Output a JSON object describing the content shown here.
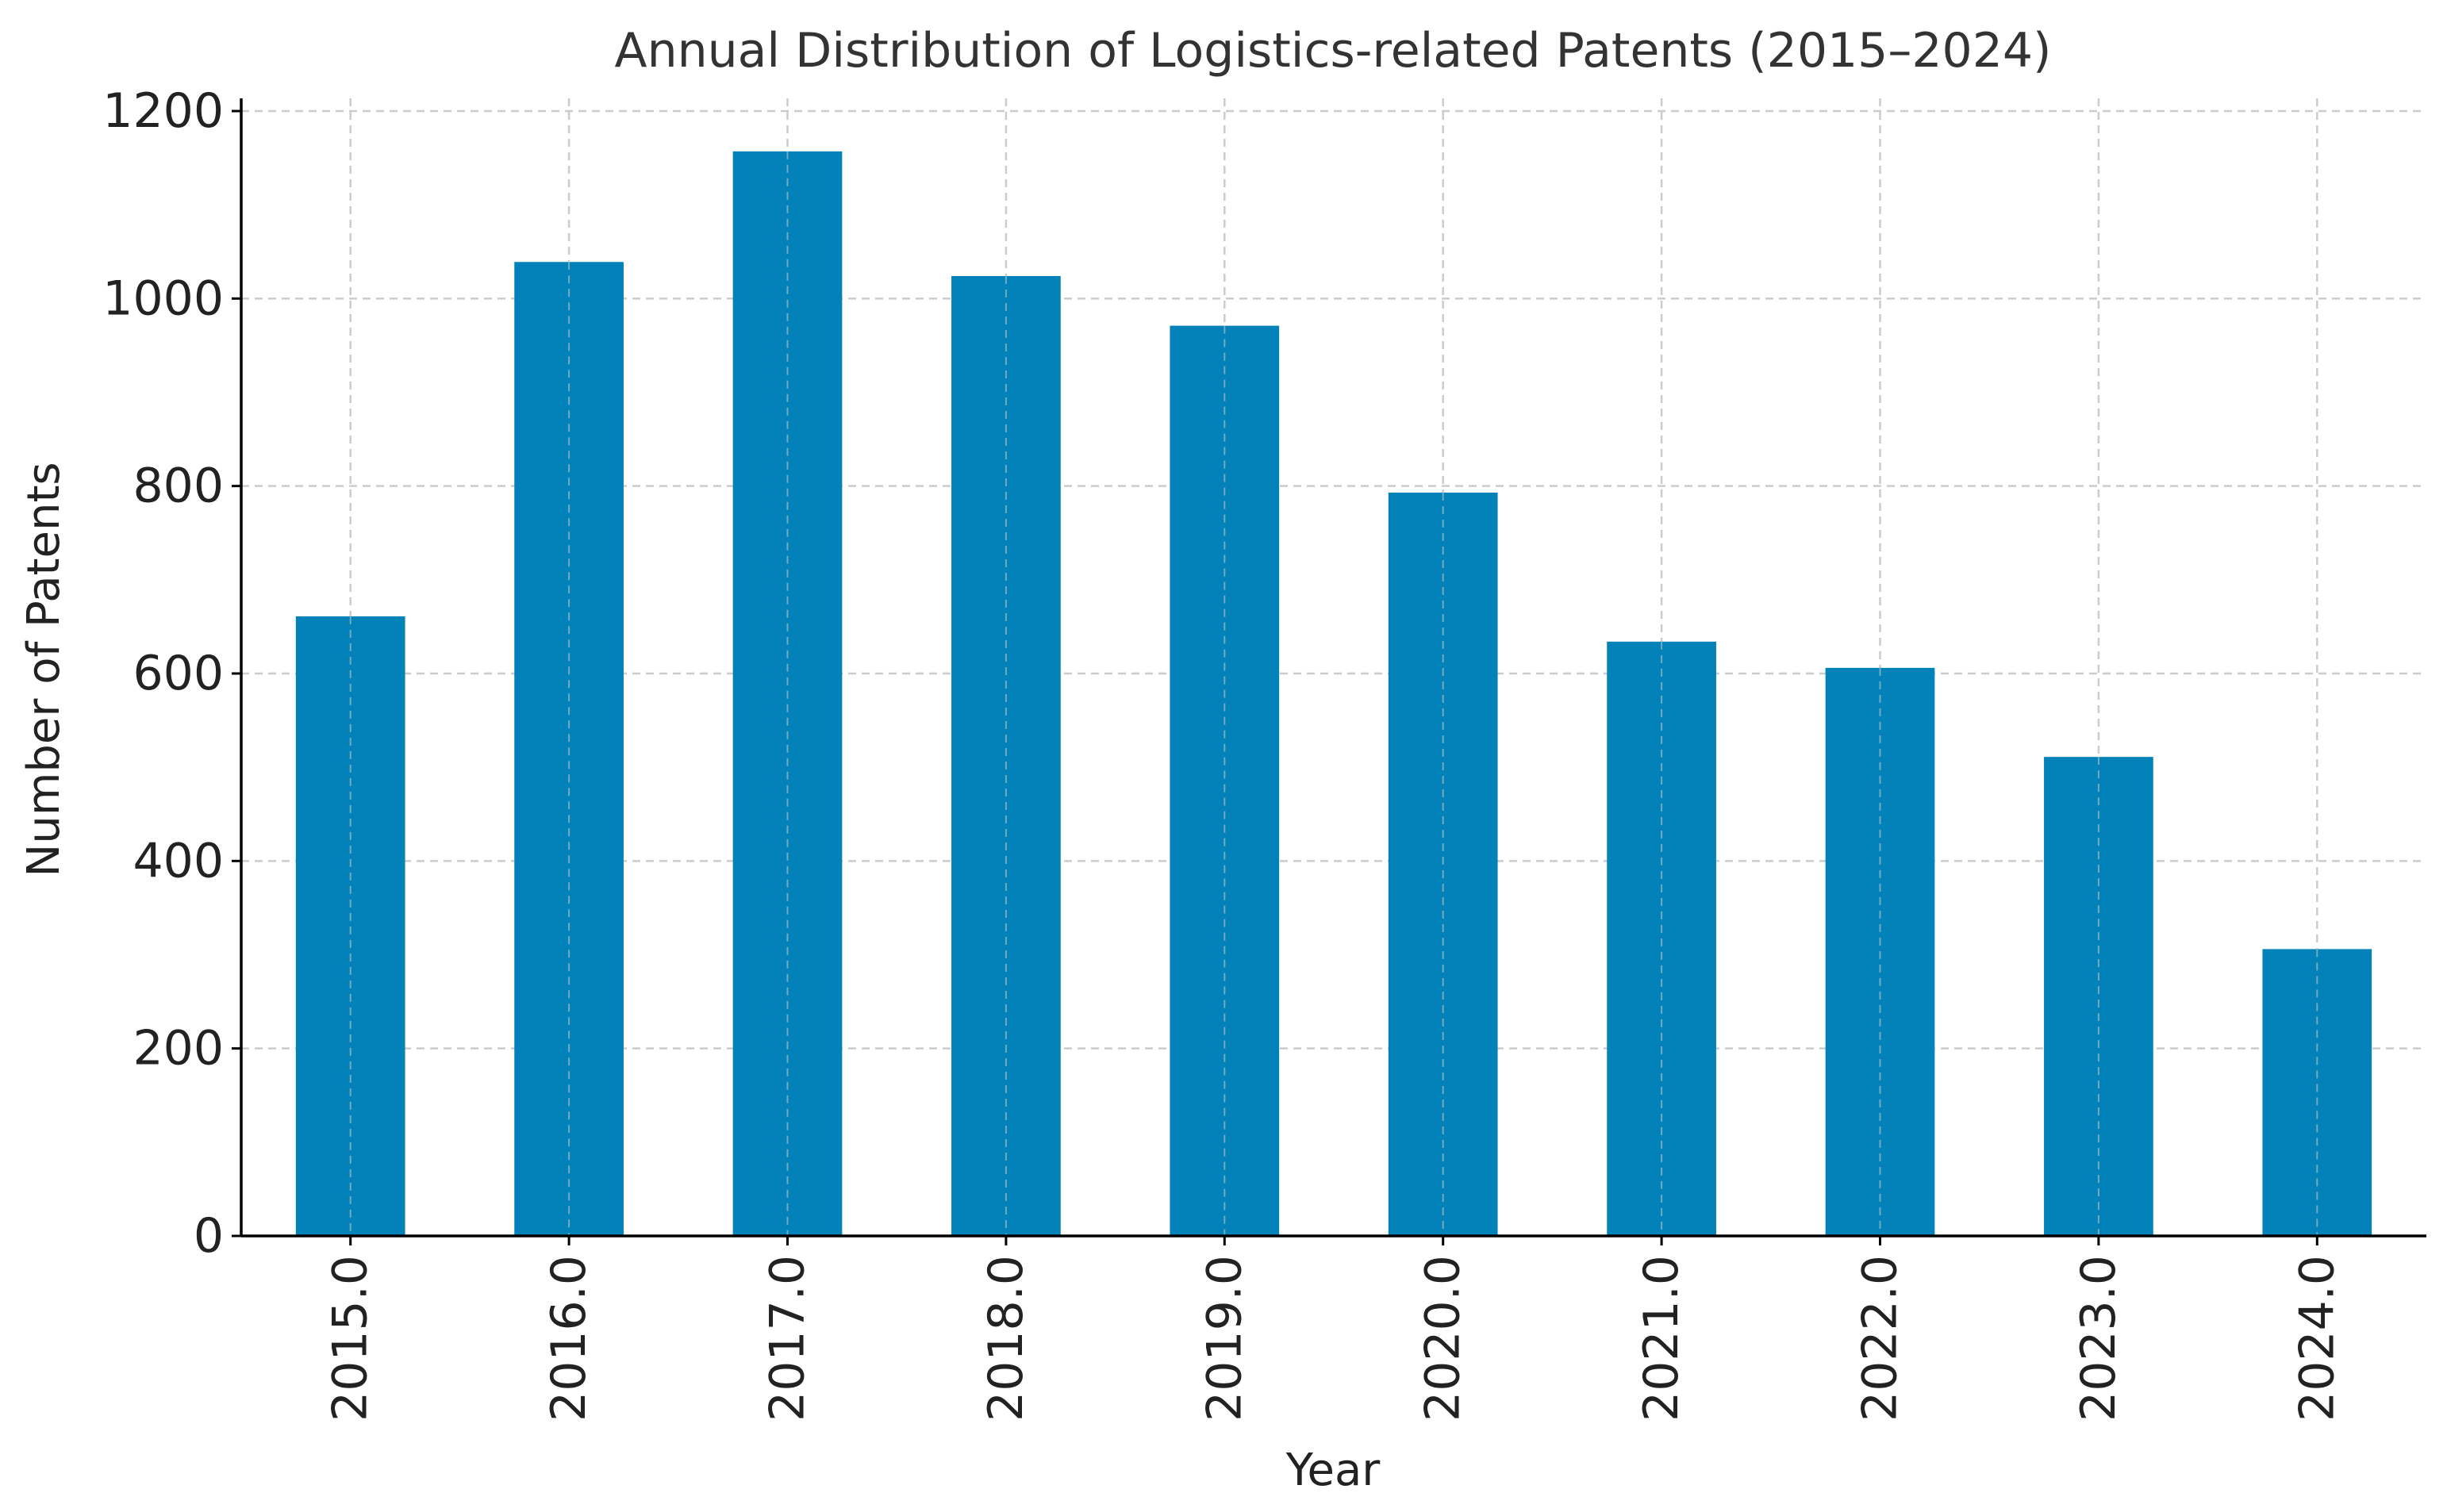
{
  "chart_data": {
    "type": "bar",
    "title": "Annual Distribution of Logistics-related Patents (2015–2024)",
    "xlabel": "Year",
    "ylabel": "Number of Patents",
    "categories": [
      "2015.0",
      "2016.0",
      "2017.0",
      "2018.0",
      "2019.0",
      "2020.0",
      "2021.0",
      "2022.0",
      "2023.0",
      "2024.0"
    ],
    "values": [
      661,
      1039,
      1157,
      1024,
      971,
      793,
      634,
      606,
      511,
      306
    ],
    "ylim": [
      0,
      1200
    ],
    "yticks": [
      0,
      200,
      400,
      600,
      800,
      1000,
      1200
    ],
    "ytick_labels": [
      "0",
      "200",
      "400",
      "600",
      "800",
      "1000",
      "1200"
    ],
    "grid": true,
    "colors": {
      "bar": "#0282b8",
      "grid": "#cccccc",
      "axis": "#000000",
      "text": "#222222",
      "title": "#333333"
    }
  }
}
